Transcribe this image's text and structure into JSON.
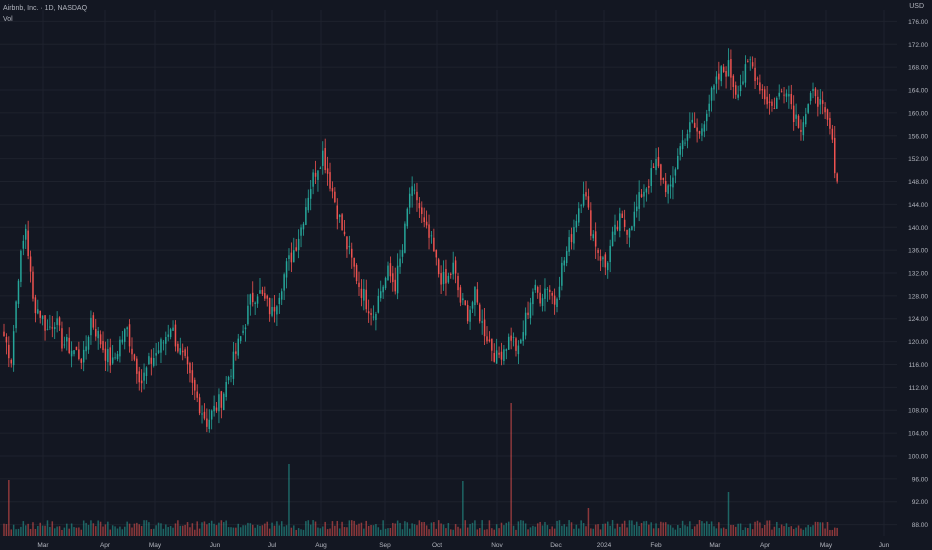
{
  "header": {
    "symbol_line": "Airbnb, Inc. · 1D, NASDAQ",
    "volume_label": "Vol",
    "currency": "USD"
  },
  "colors": {
    "up": "#26a69a",
    "down": "#ef5350",
    "background": "#131722",
    "grid": "#1e222d",
    "text": "#b2b5be"
  },
  "chart_data": {
    "type": "candlestick",
    "y_ticks": [
      "176.00",
      "172.00",
      "168.00",
      "164.00",
      "160.00",
      "156.00",
      "152.00",
      "148.00",
      "144.00",
      "140.00",
      "136.00",
      "132.00",
      "128.00",
      "124.00",
      "120.00",
      "116.00",
      "112.00",
      "108.00",
      "104.00",
      "100.00",
      "96.00",
      "92.00",
      "88.00"
    ],
    "ylim": [
      86,
      178
    ],
    "x_ticks": [
      "Mar",
      "Apr",
      "May",
      "Jun",
      "Jul",
      "Aug",
      "Sep",
      "Oct",
      "Nov",
      "Dec",
      "2024",
      "Feb",
      "Mar",
      "Apr",
      "May",
      "Jun"
    ],
    "close_path": [
      121,
      117,
      132,
      140,
      127,
      125,
      122,
      124,
      120,
      119,
      118,
      117,
      124,
      121,
      118,
      116,
      120,
      122,
      117,
      113,
      116,
      118,
      120,
      123,
      119,
      116,
      112,
      109,
      106,
      108,
      110,
      114,
      118,
      122,
      127,
      129,
      127,
      125,
      129,
      133,
      136,
      140,
      146,
      150,
      153,
      148,
      143,
      138,
      134,
      130,
      127,
      125,
      129,
      132,
      130,
      136,
      146,
      145,
      140,
      137,
      132,
      130,
      133,
      127,
      125,
      128,
      123,
      120,
      117,
      119,
      121,
      118,
      124,
      129,
      128,
      130,
      127,
      133,
      137,
      142,
      147,
      140,
      136,
      133,
      138,
      141,
      140,
      142,
      146,
      148,
      151,
      148,
      146,
      153,
      156,
      158,
      156,
      161,
      164,
      167,
      168,
      164,
      166,
      169,
      166,
      163,
      161,
      163,
      165,
      160,
      158,
      161,
      164,
      160,
      157,
      148
    ],
    "volume_spike_index": 70,
    "grid": true
  }
}
